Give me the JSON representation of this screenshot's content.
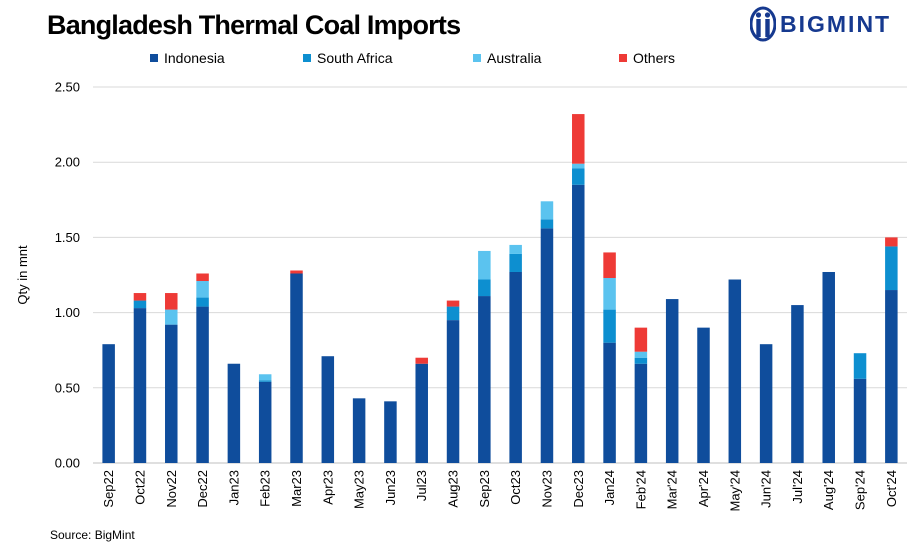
{
  "chart_data": {
    "type": "bar",
    "stacked": true,
    "title": "Bangladesh Thermal Coal Imports",
    "xlabel": "",
    "ylabel": "Qty in mnt",
    "ylim": [
      0,
      2.5
    ],
    "yticks": [
      "0.00",
      "0.50",
      "1.00",
      "1.50",
      "2.00",
      "2.50"
    ],
    "grid": true,
    "legend_position": "top",
    "categories": [
      "Sep22",
      "Oct22",
      "Nov22",
      "Dec22",
      "Jan23",
      "Feb23",
      "Mar23",
      "Apr23",
      "May23",
      "Jun23",
      "Jul23",
      "Aug23",
      "Sep23",
      "Oct23",
      "Nov23",
      "Dec23",
      "Jan24",
      "Feb'24",
      "Mar'24",
      "Apr'24",
      "May'24",
      "Jun'24",
      "Jul'24",
      "Aug'24",
      "Sep'24",
      "Oct'24"
    ],
    "series": [
      {
        "name": "Indonesia",
        "color": "#0f4d9c",
        "values": [
          0.79,
          1.03,
          0.92,
          1.04,
          0.66,
          0.54,
          1.26,
          0.71,
          0.43,
          0.41,
          0.66,
          0.95,
          1.11,
          1.27,
          1.56,
          1.85,
          0.8,
          0.66,
          1.09,
          0.9,
          1.22,
          0.79,
          1.05,
          1.27,
          0.56,
          1.15
        ]
      },
      {
        "name": "South Africa",
        "color": "#0d8fd0",
        "values": [
          0,
          0.05,
          0,
          0.06,
          0,
          0.01,
          0,
          0,
          0,
          0,
          0,
          0.09,
          0.11,
          0.12,
          0.06,
          0.11,
          0.22,
          0.04,
          0,
          0,
          0,
          0,
          0,
          0,
          0.17,
          0.29
        ]
      },
      {
        "name": "Australia",
        "color": "#5bc3ef",
        "values": [
          0,
          0,
          0.1,
          0.11,
          0,
          0.04,
          0,
          0,
          0,
          0,
          0,
          0,
          0.19,
          0.06,
          0.12,
          0.03,
          0.21,
          0.04,
          0,
          0,
          0,
          0,
          0,
          0,
          0,
          0
        ]
      },
      {
        "name": "Others",
        "color": "#ee3a36",
        "values": [
          0,
          0.05,
          0.11,
          0.05,
          0,
          0,
          0.02,
          0,
          0,
          0,
          0.04,
          0.04,
          0,
          0,
          0,
          0.33,
          0.17,
          0.16,
          0,
          0,
          0,
          0,
          0,
          0,
          0,
          0.06
        ]
      }
    ]
  },
  "brand": {
    "name": "BIGMINT",
    "color": "#16398f"
  },
  "source": "Source: BigMint"
}
